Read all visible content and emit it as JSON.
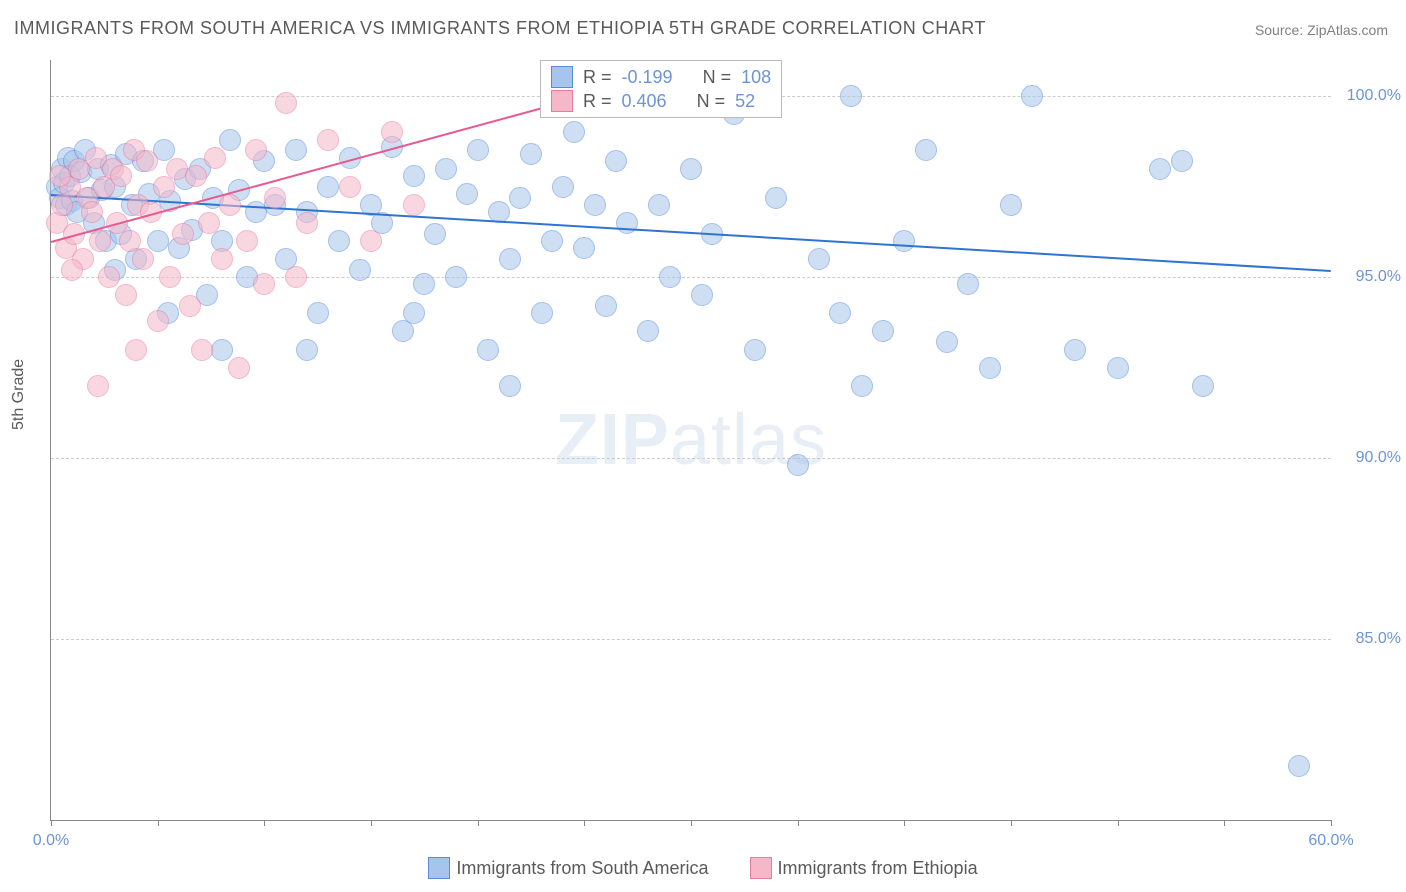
{
  "title": "IMMIGRANTS FROM SOUTH AMERICA VS IMMIGRANTS FROM ETHIOPIA 5TH GRADE CORRELATION CHART",
  "source": "Source: ZipAtlas.com",
  "watermark_bold": "ZIP",
  "watermark_light": "atlas",
  "chart": {
    "type": "scatter",
    "yaxis_label": "5th Grade",
    "xlim": [
      0,
      60
    ],
    "ylim": [
      80,
      101
    ],
    "xtick_positions": [
      0,
      5,
      10,
      15,
      20,
      25,
      30,
      35,
      40,
      45,
      50,
      55,
      60
    ],
    "xtick_labels": {
      "0": "0.0%",
      "60": "60.0%"
    },
    "ytick_positions": [
      85,
      90,
      95,
      100
    ],
    "ytick_labels": {
      "85": "85.0%",
      "90": "90.0%",
      "95": "95.0%",
      "100": "100.0%"
    },
    "background_color": "#ffffff",
    "grid_color": "#cccccc",
    "axis_color": "#888888",
    "tick_label_color": "#6b95d4",
    "point_radius": 10,
    "point_opacity": 0.55,
    "series": [
      {
        "name": "Immigrants from South America",
        "fill_color": "#a7c5ec",
        "stroke_color": "#5a8dd6",
        "line_color": "#2f74d0",
        "R_label": "R =",
        "R_value": "-0.199",
        "N_label": "N =",
        "N_value": "108",
        "trend": {
          "x1": 0,
          "y1": 97.3,
          "x2": 60,
          "y2": 95.2
        },
        "points": [
          [
            0.3,
            97.5
          ],
          [
            0.4,
            97.2
          ],
          [
            0.5,
            98.0
          ],
          [
            0.6,
            97.6
          ],
          [
            0.7,
            97.0
          ],
          [
            0.8,
            98.3
          ],
          [
            0.9,
            97.8
          ],
          [
            1.0,
            97.1
          ],
          [
            1.1,
            98.2
          ],
          [
            1.2,
            96.8
          ],
          [
            1.4,
            97.9
          ],
          [
            1.6,
            98.5
          ],
          [
            1.8,
            97.2
          ],
          [
            2.0,
            96.5
          ],
          [
            2.2,
            98.0
          ],
          [
            2.4,
            97.4
          ],
          [
            2.6,
            96.0
          ],
          [
            2.8,
            98.1
          ],
          [
            3.0,
            97.5
          ],
          [
            3.3,
            96.2
          ],
          [
            3.5,
            98.4
          ],
          [
            3.8,
            97.0
          ],
          [
            4.0,
            95.5
          ],
          [
            4.3,
            98.2
          ],
          [
            4.6,
            97.3
          ],
          [
            5.0,
            96.0
          ],
          [
            5.3,
            98.5
          ],
          [
            5.6,
            97.1
          ],
          [
            6.0,
            95.8
          ],
          [
            6.3,
            97.7
          ],
          [
            6.6,
            96.3
          ],
          [
            7.0,
            98.0
          ],
          [
            7.3,
            94.5
          ],
          [
            7.6,
            97.2
          ],
          [
            8.0,
            96.0
          ],
          [
            8.4,
            98.8
          ],
          [
            8.8,
            97.4
          ],
          [
            9.2,
            95.0
          ],
          [
            9.6,
            96.8
          ],
          [
            10.0,
            98.2
          ],
          [
            10.5,
            97.0
          ],
          [
            11.0,
            95.5
          ],
          [
            11.5,
            98.5
          ],
          [
            12.0,
            96.8
          ],
          [
            12.5,
            94.0
          ],
          [
            13.0,
            97.5
          ],
          [
            13.5,
            96.0
          ],
          [
            14.0,
            98.3
          ],
          [
            14.5,
            95.2
          ],
          [
            15.0,
            97.0
          ],
          [
            15.5,
            96.5
          ],
          [
            16.0,
            98.6
          ],
          [
            16.5,
            93.5
          ],
          [
            17.0,
            97.8
          ],
          [
            17.5,
            94.8
          ],
          [
            18.0,
            96.2
          ],
          [
            18.5,
            98.0
          ],
          [
            19.0,
            95.0
          ],
          [
            19.5,
            97.3
          ],
          [
            20.0,
            98.5
          ],
          [
            20.5,
            93.0
          ],
          [
            21.0,
            96.8
          ],
          [
            21.5,
            95.5
          ],
          [
            22.0,
            97.2
          ],
          [
            22.5,
            98.4
          ],
          [
            23.0,
            94.0
          ],
          [
            23.5,
            96.0
          ],
          [
            24.0,
            97.5
          ],
          [
            24.5,
            99.0
          ],
          [
            25.0,
            95.8
          ],
          [
            25.5,
            97.0
          ],
          [
            26.0,
            94.2
          ],
          [
            26.5,
            98.2
          ],
          [
            27.0,
            96.5
          ],
          [
            28.0,
            93.5
          ],
          [
            28.5,
            97.0
          ],
          [
            29.0,
            95.0
          ],
          [
            30.0,
            98.0
          ],
          [
            30.5,
            94.5
          ],
          [
            31.0,
            96.2
          ],
          [
            32.0,
            99.5
          ],
          [
            33.0,
            93.0
          ],
          [
            34.0,
            97.2
          ],
          [
            35.0,
            89.8
          ],
          [
            36.0,
            95.5
          ],
          [
            37.0,
            94.0
          ],
          [
            37.5,
            100.0
          ],
          [
            38.0,
            92.0
          ],
          [
            39.0,
            93.5
          ],
          [
            40.0,
            96.0
          ],
          [
            41.0,
            98.5
          ],
          [
            42.0,
            93.2
          ],
          [
            43.0,
            94.8
          ],
          [
            44.0,
            92.5
          ],
          [
            45.0,
            97.0
          ],
          [
            46.0,
            100.0
          ],
          [
            48.0,
            93.0
          ],
          [
            50.0,
            92.5
          ],
          [
            52.0,
            98.0
          ],
          [
            53.0,
            98.2
          ],
          [
            54.0,
            92.0
          ],
          [
            58.5,
            81.5
          ],
          [
            21.5,
            92.0
          ],
          [
            17.0,
            94.0
          ],
          [
            12.0,
            93.0
          ],
          [
            8.0,
            93.0
          ],
          [
            5.5,
            94.0
          ],
          [
            3.0,
            95.2
          ]
        ]
      },
      {
        "name": "Immigrants from Ethiopia",
        "fill_color": "#f5b8c9",
        "stroke_color": "#e87ba1",
        "line_color": "#e85a8f",
        "R_label": "R =",
        "R_value": "0.406",
        "N_label": "N =",
        "N_value": "52",
        "trend": {
          "x1": 0,
          "y1": 96.0,
          "x2": 28,
          "y2": 100.5
        },
        "points": [
          [
            0.3,
            96.5
          ],
          [
            0.5,
            97.0
          ],
          [
            0.7,
            95.8
          ],
          [
            0.9,
            97.5
          ],
          [
            1.1,
            96.2
          ],
          [
            1.3,
            98.0
          ],
          [
            1.5,
            95.5
          ],
          [
            1.7,
            97.2
          ],
          [
            1.9,
            96.8
          ],
          [
            2.1,
            98.3
          ],
          [
            2.3,
            96.0
          ],
          [
            2.5,
            97.5
          ],
          [
            2.7,
            95.0
          ],
          [
            2.9,
            98.0
          ],
          [
            3.1,
            96.5
          ],
          [
            3.3,
            97.8
          ],
          [
            3.5,
            94.5
          ],
          [
            3.7,
            96.0
          ],
          [
            3.9,
            98.5
          ],
          [
            4.1,
            97.0
          ],
          [
            4.3,
            95.5
          ],
          [
            4.5,
            98.2
          ],
          [
            4.7,
            96.8
          ],
          [
            5.0,
            93.8
          ],
          [
            5.3,
            97.5
          ],
          [
            5.6,
            95.0
          ],
          [
            5.9,
            98.0
          ],
          [
            6.2,
            96.2
          ],
          [
            6.5,
            94.2
          ],
          [
            6.8,
            97.8
          ],
          [
            7.1,
            93.0
          ],
          [
            7.4,
            96.5
          ],
          [
            7.7,
            98.3
          ],
          [
            8.0,
            95.5
          ],
          [
            8.4,
            97.0
          ],
          [
            8.8,
            92.5
          ],
          [
            9.2,
            96.0
          ],
          [
            9.6,
            98.5
          ],
          [
            10.0,
            94.8
          ],
          [
            10.5,
            97.2
          ],
          [
            11.0,
            99.8
          ],
          [
            11.5,
            95.0
          ],
          [
            12.0,
            96.5
          ],
          [
            13.0,
            98.8
          ],
          [
            14.0,
            97.5
          ],
          [
            15.0,
            96.0
          ],
          [
            16.0,
            99.0
          ],
          [
            17.0,
            97.0
          ],
          [
            2.2,
            92.0
          ],
          [
            4.0,
            93.0
          ],
          [
            1.0,
            95.2
          ],
          [
            0.4,
            97.8
          ]
        ]
      }
    ]
  },
  "legend_bottom": {
    "items": [
      {
        "label": "Immigrants from South America",
        "fill": "#a7c5ec",
        "stroke": "#5a8dd6"
      },
      {
        "label": "Immigrants from Ethiopia",
        "fill": "#f5b8c9",
        "stroke": "#e87ba1"
      }
    ]
  }
}
